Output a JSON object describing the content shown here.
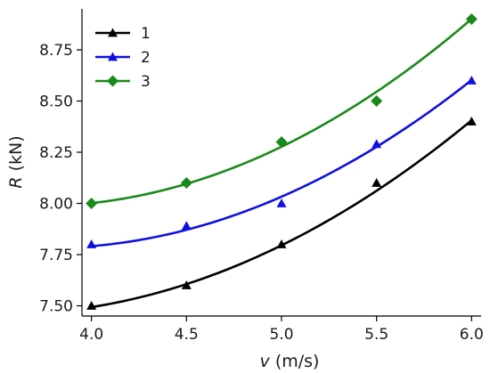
{
  "chart_data": {
    "type": "line",
    "title": "",
    "xlabel_var": "v",
    "xlabel_unit": " (m/s)",
    "ylabel_var": "R",
    "ylabel_unit": " (kN)",
    "xlim": [
      3.95,
      6.05
    ],
    "ylim": [
      7.45,
      8.95
    ],
    "xticks": [
      4.0,
      4.5,
      5.0,
      5.5,
      6.0
    ],
    "xtick_labels": [
      "4.0",
      "4.5",
      "5.0",
      "5.5",
      "6.0"
    ],
    "yticks": [
      7.5,
      7.75,
      8.0,
      8.25,
      8.5,
      8.75
    ],
    "ytick_labels": [
      "7.50",
      "7.75",
      "8.00",
      "8.25",
      "8.50",
      "8.75"
    ],
    "grid": false,
    "legend_position": "top-left",
    "x": [
      4.0,
      4.5,
      5.0,
      5.5,
      6.0
    ],
    "series": [
      {
        "name": "1",
        "color": "#000000",
        "marker": "triangle",
        "values": [
          7.5,
          7.6,
          7.8,
          8.1,
          8.4
        ],
        "fit": [
          7.495,
          7.602,
          7.798,
          8.062,
          8.405
        ]
      },
      {
        "name": "2",
        "color": "#1010e0",
        "marker": "triangle",
        "values": [
          7.8,
          7.89,
          8.0,
          8.29,
          8.6
        ],
        "fit": [
          7.795,
          7.862,
          8.037,
          8.28,
          8.6
        ]
      },
      {
        "name": "3",
        "color": "#1a8a1a",
        "marker": "diamond",
        "values": [
          8.0,
          8.1,
          8.3,
          8.5,
          8.9
        ],
        "fit": [
          8.002,
          8.095,
          8.276,
          8.547,
          8.9
        ]
      }
    ]
  }
}
